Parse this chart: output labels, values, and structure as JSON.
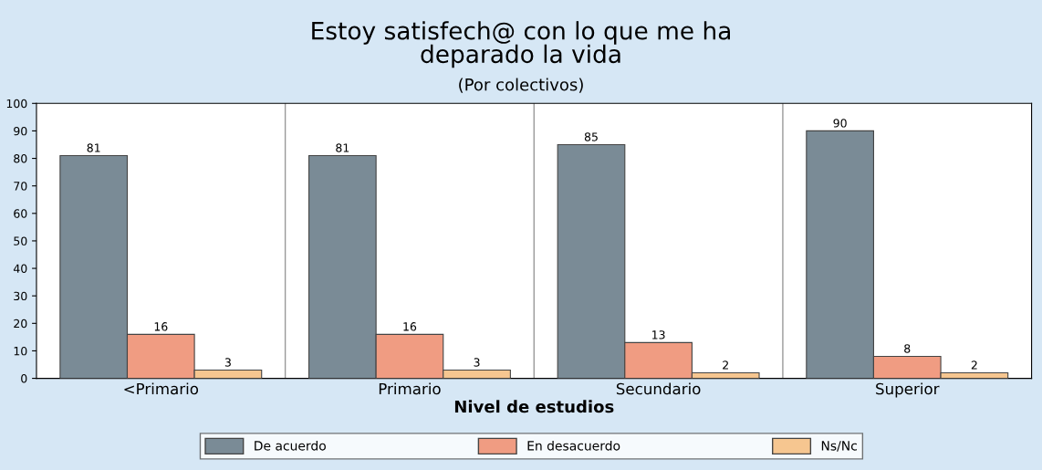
{
  "chart_data": {
    "type": "bar",
    "title": "Estoy satisfech@ con lo que me ha\ndeparado la vida",
    "subtitle": "(Por colectivos)",
    "xlabel": "Nivel de estudios",
    "categories": [
      "<Primario",
      "Primario",
      "Secundario",
      "Superior"
    ],
    "series": [
      {
        "name": "De acuerdo",
        "color": "#7a8b96",
        "values": [
          81,
          81,
          85,
          90
        ]
      },
      {
        "name": "En desacuerdo",
        "color": "#f09c82",
        "values": [
          16,
          16,
          13,
          8
        ]
      },
      {
        "name": "Ns/Nc",
        "color": "#f6c690",
        "values": [
          3,
          3,
          2,
          2
        ]
      }
    ],
    "ylim": [
      0,
      100
    ],
    "yticks": [
      0,
      10,
      20,
      30,
      40,
      50,
      60,
      70,
      80,
      90,
      100
    ],
    "grid": "x",
    "legend": "bottom",
    "data_labels": true
  }
}
